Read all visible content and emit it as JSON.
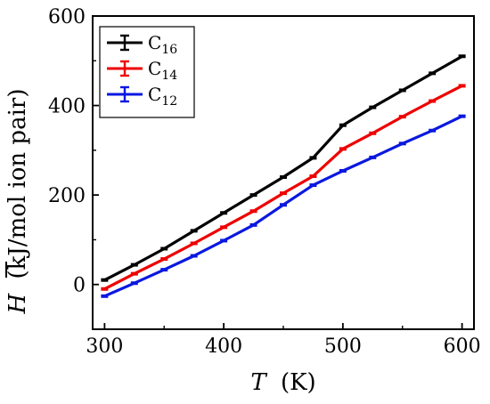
{
  "chart_data": {
    "type": "line",
    "x_label": "T",
    "x_unit": "(K)",
    "y_label": "H",
    "y_unit": "(kJ/mol ion pair)",
    "xlim": [
      290,
      610
    ],
    "ylim": [
      -100,
      600
    ],
    "x_ticks": [
      300,
      400,
      500,
      600
    ],
    "y_ticks": [
      0,
      200,
      400,
      600
    ],
    "legend_position": "top-left",
    "grid": false,
    "x": [
      300,
      325,
      350,
      375,
      400,
      425,
      450,
      475,
      500,
      525,
      550,
      575,
      600
    ],
    "series": [
      {
        "name": "C",
        "name_sub": "16",
        "color": "#000000",
        "values": [
          10,
          44,
          80,
          120,
          160,
          200,
          240,
          283,
          356,
          396,
          434,
          472,
          510
        ]
      },
      {
        "name": "C",
        "name_sub": "14",
        "color": "#ee0000",
        "values": [
          -10,
          24,
          57,
          92,
          128,
          164,
          204,
          242,
          303,
          338,
          375,
          410,
          444
        ]
      },
      {
        "name": "C",
        "name_sub": "12",
        "color": "#0a18e0",
        "values": [
          -26,
          3,
          33,
          64,
          98,
          133,
          178,
          222,
          254,
          284,
          315,
          344,
          376
        ]
      }
    ]
  }
}
